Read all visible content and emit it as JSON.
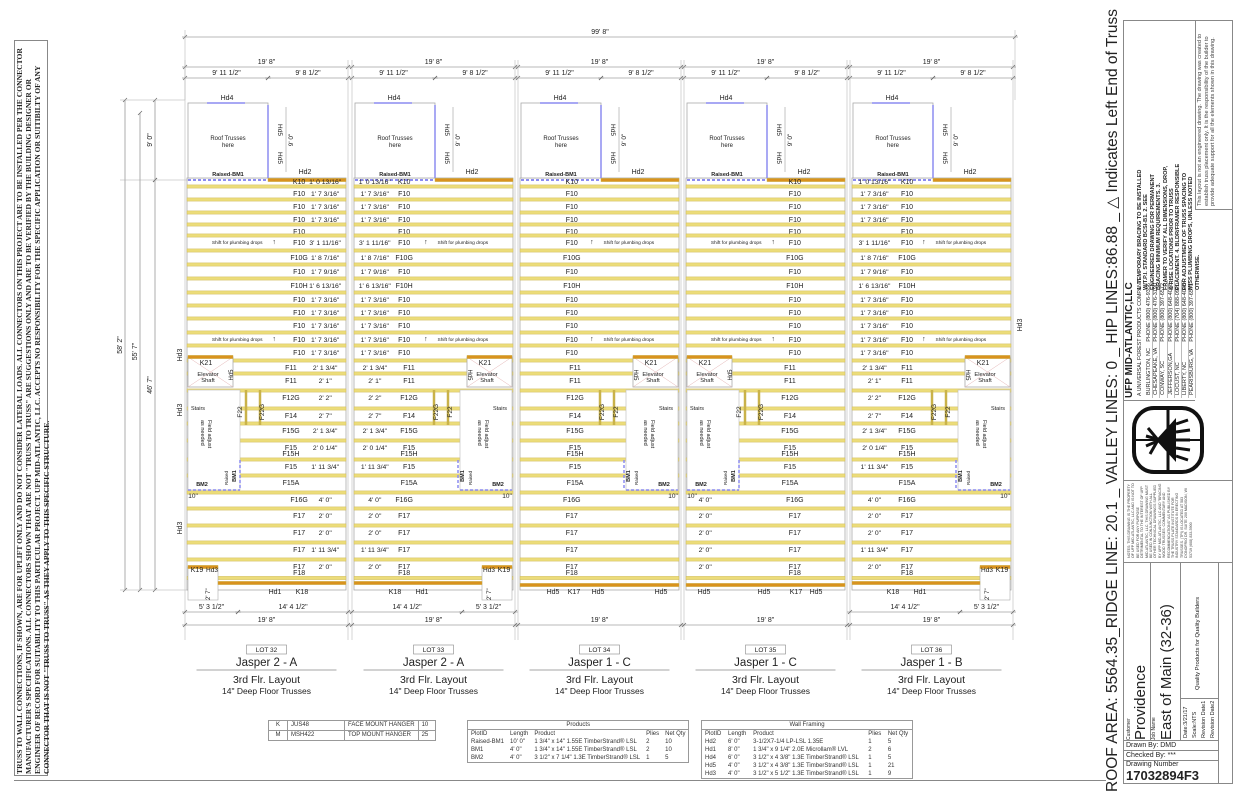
{
  "disclaimer": "TRUSS TO WALL CONNECTIONS, IF SHOWN, ARE FOR UPLIFT ONLY AND DO NOT CONSIDER LATERAL LOADS. ALL CONNECTORS ON THIS PROJECT ARE TO BE INSTALLED PER THE CONNECTOR MANUFACTURER'S SPECIFICATIONS. ALL CONNECTORS SHOWN THAT ARE NOT \"TRUSS TO TRUSS\" ARE SUGGESTIONS ONLY AND ARE TO BE VERIFIED BY THE BUILDING DESIGNER OR ENGINEER OF RECORD FOR SUITABILITY TO THIS PARTICULAR PROJECT. UFP MID-ATLANTIC, LLC. ACCEPTS NO RESPONSIBILITY FOR THE SPECIFIC APPLICATION OR SUITIBILTY OF ANY CONNECTOR THAT IS NOT \"TRUSS TO TRUSS\" AS THEY APPLY TO THIS SPECIFIC STRUCTURE.",
  "overall": {
    "width": "99' 8\"",
    "left_dims": [
      "58' 2\"",
      "55' 7\"",
      "46' 7\""
    ],
    "roof_height": "9' 0\""
  },
  "common": {
    "roof": "Roof Trusses here",
    "hd4": "Hd4",
    "hd5": "Hd5",
    "hd2": "Hd2",
    "hd3": "Hd3",
    "hd1": "Hd1",
    "raised_bm1": "Raised-BM1",
    "box_dim": "9' 0\"",
    "k21": "K21",
    "elevator": "Elevator Shaft",
    "stairs": "Stairs",
    "f22": "F22",
    "f22g": "F22G",
    "field": "Field adjust as needed",
    "bm1": "BM1",
    "bm2": "BM2",
    "raised": "Raised",
    "ten": "10\"",
    "k19": "K19",
    "k18": "K18",
    "k17": "K17",
    "notch": "2' 7\"",
    "shift": "Shift for plumbing drops"
  },
  "rows": [
    "K10",
    "F10",
    "F10",
    "F10",
    "F10",
    "F10",
    "F10G",
    "F10",
    "F10H",
    "F10",
    "F10",
    "F10",
    "F10",
    "F10",
    "F11",
    "F11",
    "F12G",
    "F14",
    "F15G",
    "F15",
    "F15",
    "F15A",
    "F16G",
    "F17",
    "F17",
    "F17",
    "F17"
  ],
  "row_sublabels": {
    "19": "F15H",
    "26": "F18"
  },
  "lots": [
    {
      "lot": "LOT 32",
      "model": "Jasper 2 - A",
      "layout": "3rd Flr. Layout",
      "trusses": "14\" Deep Floor Trusses",
      "width": "19' 8\"",
      "top_dims": [
        "9' 11 1/2\"",
        "9' 8 1/2\""
      ],
      "bottom_dims": [
        "5' 3 1/2\"",
        "14' 4 1/2\""
      ],
      "elevator_side": "left",
      "notch": true,
      "dims": [
        "1' 0 13/16\"",
        "1' 7 3/16\"",
        "1' 7 3/16\"",
        "1' 7 3/16\"",
        "",
        "3' 1 11/16\"",
        "1' 8 7/16\"",
        "1' 7 9/16\"",
        "1' 6 13/16\"",
        "1' 7 3/16\"",
        "1' 7 3/16\"",
        "1' 7 3/16\"",
        "1' 7 3/16\"",
        "1' 7 3/16\"",
        "2' 1 3/4\"",
        "2' 1\"",
        "2' 2\"",
        "2' 7\"",
        "2' 1 3/4\"",
        "2' 0 1/4\"",
        "1' 11 3/4\"",
        "",
        "4' 0\"",
        "2' 0\"",
        "2' 0\"",
        "1' 11 3/4\"",
        "2' 0\""
      ]
    },
    {
      "lot": "LOT 33",
      "model": "Jasper 2 - A",
      "layout": "3rd Flr. Layout",
      "trusses": "14\" Deep Floor Trusses",
      "width": "19' 8\"",
      "top_dims": [
        "9' 11 1/2\"",
        "9' 8 1/2\""
      ],
      "bottom_dims": [
        "14' 4 1/2\"",
        "5' 3 1/2\""
      ],
      "elevator_side": "right",
      "notch": true,
      "dims": [
        "1' 0 13/16\"",
        "1' 7 3/16\"",
        "1' 7 3/16\"",
        "1' 7 3/16\"",
        "",
        "3' 1 11/16\"",
        "1' 8 7/16\"",
        "1' 7 9/16\"",
        "1' 6 13/16\"",
        "1' 7 3/16\"",
        "1' 7 3/16\"",
        "1' 7 3/16\"",
        "1' 7 3/16\"",
        "1' 7 3/16\"",
        "2' 1 3/4\"",
        "2' 1\"",
        "2' 2\"",
        "2' 7\"",
        "2' 1 3/4\"",
        "2' 0 1/4\"",
        "1' 11 3/4\"",
        "",
        "4' 0\"",
        "2' 0\"",
        "2' 0\"",
        "1' 11 3/4\"",
        "2' 0\""
      ]
    },
    {
      "lot": "LOT 34",
      "model": "Jasper 1 - C",
      "layout": "3rd Flr. Layout",
      "trusses": "14\" Deep Floor Trusses",
      "width": "19' 8\"",
      "top_dims": [
        "9' 11 1/2\"",
        "9' 8 1/2\""
      ],
      "bottom_dims": [],
      "elevator_side": "right",
      "notch": false,
      "dims": []
    },
    {
      "lot": "LOT 35",
      "model": "Jasper 1 - C",
      "layout": "3rd Flr. Layout",
      "trusses": "14\" Deep Floor Trusses",
      "width": "19' 8\"",
      "top_dims": [
        "9' 11 1/2\"",
        "9' 8 1/2\""
      ],
      "bottom_dims": [],
      "elevator_side": "left",
      "notch": false,
      "dims": [
        "",
        "",
        "",
        "",
        "",
        "",
        "",
        "",
        "",
        "",
        "",
        "",
        "",
        "",
        "",
        "",
        "",
        "",
        "",
        "",
        "",
        "",
        "4' 0\"",
        "2' 0\"",
        "2' 0\"",
        "2' 0\"",
        "2' 0\""
      ]
    },
    {
      "lot": "LOT 36",
      "model": "Jasper 1 - B",
      "layout": "3rd Flr. Layout",
      "trusses": "14\" Deep Floor Trusses",
      "width": "19' 8\"",
      "top_dims": [
        "9' 11 1/2\"",
        "9' 8 1/2\""
      ],
      "bottom_dims": [
        "14' 4 1/2\"",
        "5' 3 1/2\""
      ],
      "elevator_side": "right",
      "notch": true,
      "dims": [
        "1' 0 13/16\"",
        "1' 7 3/16\"",
        "1' 7 3/16\"",
        "1' 7 3/16\"",
        "",
        "3' 1 11/16\"",
        "1' 8 7/16\"",
        "1' 7 9/16\"",
        "1' 6 13/16\"",
        "1' 7 3/16\"",
        "1' 7 3/16\"",
        "1' 7 3/16\"",
        "1' 7 3/16\"",
        "1' 7 3/16\"",
        "2' 1 3/4\"",
        "2' 1\"",
        "2' 2\"",
        "2' 7\"",
        "2' 1 3/4\"",
        "2' 0 1/4\"",
        "1' 11 3/4\"",
        "",
        "4' 0\"",
        "2' 0\"",
        "2' 0\"",
        "1' 11 3/4\"",
        "2' 0\""
      ]
    }
  ],
  "hangers": [
    {
      "symbol": "K",
      "model": "JUS48",
      "type": "FACE MOUNT HANGER",
      "qty": "10"
    },
    {
      "symbol": "M",
      "model": "MSH422",
      "type": "TOP MOUNT HANGER",
      "qty": "25"
    }
  ],
  "products": {
    "title": "Products",
    "headers": [
      "PlotID",
      "Length",
      "Product",
      "Plies",
      "Net Qty"
    ],
    "rows": [
      [
        "Raised-BM1",
        "10' 0\"",
        "1 3/4\" x 14\" 1.55E TimberStrand® LSL",
        "2",
        "10"
      ],
      [
        "BM1",
        "4' 0\"",
        "1 3/4\" x 14\" 1.55E TimberStrand® LSL",
        "2",
        "10"
      ],
      [
        "BM2",
        "4' 0\"",
        "3 1/2\" x 7 1/4\" 1.3E TimberStrand® LSL",
        "1",
        "5"
      ]
    ]
  },
  "wall_framing": {
    "title": "Wall Framing",
    "headers": [
      "PlotID",
      "Length",
      "Product",
      "Plies",
      "Net Qty"
    ],
    "rows": [
      [
        "Hd2",
        "6' 0\"",
        "3-1/2X7-1/4 LP-LSL 1.35E",
        "1",
        "5"
      ],
      [
        "Hd1",
        "8' 0\"",
        "1 3/4\" x 9 1/4\" 2.0E Microllam® LVL",
        "2",
        "6"
      ],
      [
        "Hd4",
        "6' 0\"",
        "3 1/2\" x 4 3/8\" 1.3E TimberStrand® LSL",
        "1",
        "5"
      ],
      [
        "Hd5",
        "4' 0\"",
        "3 1/2\" x 4 3/8\" 1.3E TimberStrand® LSL",
        "1",
        "21"
      ],
      [
        "Hd3",
        "4' 0\"",
        "3 1/2\" x 5 1/2\" 1.3E TimberStrand® LSL",
        "1",
        "9"
      ]
    ]
  },
  "title_block": {
    "summary": "ROOF AREA:  5564.35_RIDGE LINE: 20.1  _  VALLEY LINES: 0  _  HIP LINES:86.88  _   △  Indicates Left End of Truss",
    "company": "UFP MID-ATLANTIC,LLC",
    "company_sub": "A UNIVERSAL FOREST PRODUCTS COMPANY",
    "offices": [
      [
        "BURLINGTON, NC",
        "PHONE (800) 476-9356"
      ],
      [
        "CHESAPEAKE, VA",
        "PHONE (800) 476-3190"
      ],
      [
        "CONWAY, SC",
        "PHONE (800) 397-6572"
      ],
      [
        "JEFFERSON,GA",
        "PHONE (800) 648-4038"
      ],
      [
        "LOCUST, NC",
        "PHONE (704) 888-0920"
      ],
      [
        "LIBERTY, NC",
        "PHONE (800) 648-4038"
      ],
      [
        "PEARISBURG, VA",
        "PHONE (800) 397-6571"
      ]
    ],
    "bracing_notes": "1. TEMPORARY BRACING TO BE INSTALLED W/T.P.I. STANDARD BCSI-B1. 2. SEE ENGINEERED DRAWING FOR PERMANENT BRACING MINIMUM REQUIREMENTS. 3. FRAMER TO VERIFY ALL DIMENSIONS, DROP, & RISE LOCATIONS PRIOR TO TRUSS PLACEMENT. 4. BLDR/FRAMER RESPONSIBLE FOR ADJUSTMENT OF TRUSS SPACING TO MISS PLUMBING DROPS, UNLESS NOTED OTHERWISE.",
    "layout_disclaimer": "This layout is not an engineered drawing. The drawing was created to establish truss placement only. It is the responsibility of the builder to provide adequate support for all the elements shown in this drawing.",
    "notes": "NOTES: THIS DRAWING IS THE PROPERTY OF UFP MID-ATLANTIC, LLC AND IS NOT TO BE USED FOR ANY PURPOSE DETRIMENTAL TO THE INTEREST OF UFP MID-ATLANTIC, LLC. THIS DRAWING MUST BE USED IN CONJUNCTION WITH ALL OTHER TECHNICAL DRAWINGS SUPPLIED BY UFP MID-ATLANTIC, LLC AND \"BRACING WOOD TRUSSES: COMMENTARY AND RECOMMENDATIONS\" AS PUBLISHED BY THE TRUSS PLATE INSTITUTE FOR INDUSTRY STANDARDS IN ERECTING TRUSSES. (TPI) IS LOCATED AT 583 D'ONOFRIO DR. SUITE 200 MADISON, WI 53719 (608) 833-5900",
    "customer_label": "Customer",
    "customer": "Providence",
    "job_label": "Job Name",
    "job": "East of Main (32-36)",
    "date": "Date:3/21/17",
    "scale": "Scale:NTS",
    "rev1": "Revision Date1",
    "rev2": "Revision Date2",
    "tagline": "Quality Products for Quality Builders",
    "drawn_by": "Drawn By: DMD",
    "checked_by": "Checked By:  ***",
    "drawing_number_label": "Drawing Number",
    "drawing_number": "17032894F3"
  },
  "colors": {
    "truss": "#ecdc7a",
    "truss_edge": "#c9b24a",
    "girder": "#d9921e",
    "beam": "#8c8cf0",
    "line": "#999999"
  }
}
